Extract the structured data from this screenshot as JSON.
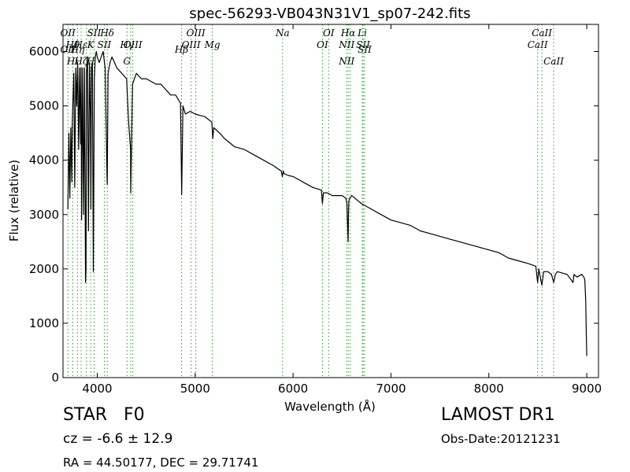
{
  "chart_data": {
    "type": "line",
    "title": "spec-56293-VB043N31V1_sp07-242.fits",
    "xlabel": "Wavelength (Å)",
    "ylabel": "Flux (relative)",
    "xlim": [
      3650,
      9120
    ],
    "ylim": [
      0,
      6500
    ],
    "xticks": [
      4000,
      5000,
      6000,
      7000,
      8000,
      9000
    ],
    "yticks": [
      0,
      1000,
      2000,
      3000,
      4000,
      5000,
      6000
    ],
    "grid": false,
    "series": [
      {
        "color": "#000000",
        "x": [
          3700,
          3710,
          3720,
          3730,
          3740,
          3745,
          3750,
          3760,
          3770,
          3780,
          3790,
          3800,
          3810,
          3820,
          3830,
          3835,
          3840,
          3850,
          3860,
          3870,
          3880,
          3885,
          3890,
          3900,
          3910,
          3920,
          3930,
          3935,
          3940,
          3950,
          3960,
          3965,
          3970,
          3980,
          3990,
          4000,
          4020,
          4040,
          4060,
          4080,
          4100,
          4102,
          4110,
          4130,
          4150,
          4200,
          4250,
          4300,
          4320,
          4340,
          4342,
          4360,
          4380,
          4400,
          4450,
          4500,
          4550,
          4600,
          4650,
          4700,
          4750,
          4800,
          4850,
          4862,
          4875,
          4900,
          4950,
          5000,
          5100,
          5170,
          5180,
          5190,
          5250,
          5300,
          5400,
          5500,
          5600,
          5700,
          5800,
          5880,
          5890,
          5900,
          5910,
          5950,
          6000,
          6100,
          6200,
          6290,
          6300,
          6310,
          6350,
          6400,
          6450,
          6500,
          6540,
          6550,
          6560,
          6563,
          6566,
          6570,
          6580,
          6600,
          6700,
          6800,
          6900,
          7000,
          7100,
          7200,
          7300,
          7400,
          7500,
          7600,
          7700,
          7800,
          7900,
          8000,
          8100,
          8200,
          8300,
          8400,
          8480,
          8498,
          8510,
          8530,
          8542,
          8560,
          8600,
          8640,
          8662,
          8680,
          8700,
          8800,
          8860,
          8870,
          8900,
          8950,
          8970,
          8980,
          8990,
          8995,
          9000
        ],
        "values": [
          3100,
          4500,
          3300,
          4600,
          3600,
          4700,
          5000,
          5600,
          3500,
          5700,
          5000,
          5800,
          4200,
          5700,
          4300,
          5700,
          2900,
          5700,
          3000,
          5700,
          1750,
          2000,
          5600,
          5900,
          2700,
          5800,
          4800,
          3100,
          5700,
          5800,
          1950,
          3900,
          5500,
          5900,
          6000,
          5900,
          5800,
          5900,
          6000,
          5700,
          3700,
          3550,
          5600,
          5800,
          5900,
          5700,
          5600,
          5500,
          4700,
          4200,
          3400,
          5400,
          5500,
          5600,
          5500,
          5500,
          5450,
          5400,
          5400,
          5300,
          5200,
          5200,
          5050,
          3370,
          5000,
          4850,
          4900,
          4850,
          4800,
          4700,
          4400,
          4600,
          4500,
          4400,
          4250,
          4200,
          4100,
          4000,
          3900,
          3800,
          3700,
          3800,
          3750,
          3720,
          3700,
          3600,
          3500,
          3450,
          3200,
          3400,
          3400,
          3350,
          3350,
          3350,
          3300,
          3200,
          2600,
          2500,
          3000,
          3250,
          3300,
          3350,
          3200,
          3100,
          3000,
          2900,
          2850,
          2800,
          2700,
          2650,
          2600,
          2550,
          2500,
          2450,
          2400,
          2350,
          2300,
          2200,
          2150,
          2100,
          2050,
          1750,
          2000,
          1800,
          1700,
          1950,
          1950,
          1900,
          1750,
          1900,
          1950,
          1900,
          1750,
          1900,
          1850,
          1900,
          1850,
          1800,
          1400,
          800,
          400
        ]
      }
    ],
    "line_markers": [
      {
        "x": 3700,
        "top": "OII",
        "bottom": "OII"
      },
      {
        "x": 3750,
        "top": "Hθ",
        "bottom": "Hι"
      },
      {
        "x": 3798,
        "top": "",
        "bottom": "Hη"
      },
      {
        "x": 3835,
        "top": "Hε",
        "bottom": "Hζ"
      },
      {
        "x": 3889,
        "top": "",
        "bottom": ""
      },
      {
        "x": 3933,
        "top": "K",
        "bottom": "H"
      },
      {
        "x": 3968,
        "top": "SII",
        "bottom": ""
      },
      {
        "x": 4072,
        "top": "SII",
        "bottom": ""
      },
      {
        "x": 4102,
        "top": "Hδ",
        "bottom": ""
      },
      {
        "x": 4304,
        "top": "Hγ",
        "bottom": "G"
      },
      {
        "x": 4341,
        "top": "",
        "bottom": ""
      },
      {
        "x": 4363,
        "top": "OIII",
        "bottom": ""
      },
      {
        "x": 4861,
        "top": "",
        "bottom": "Hβ"
      },
      {
        "x": 4959,
        "top": "OIII",
        "bottom": ""
      },
      {
        "x": 5007,
        "top": "OIII",
        "bottom": ""
      },
      {
        "x": 5175,
        "top": "Mg",
        "bottom": ""
      },
      {
        "x": 5893,
        "top": "Na",
        "bottom": ""
      },
      {
        "x": 6300,
        "top": "OI",
        "bottom": ""
      },
      {
        "x": 6364,
        "top": "OI",
        "bottom": ""
      },
      {
        "x": 6548,
        "top": "NII",
        "bottom": "NII"
      },
      {
        "x": 6563,
        "top": "Hα",
        "bottom": ""
      },
      {
        "x": 6583,
        "top": "",
        "bottom": ""
      },
      {
        "x": 6707,
        "top": "Li",
        "bottom": ""
      },
      {
        "x": 6716,
        "top": "SII",
        "bottom": ""
      },
      {
        "x": 6731,
        "top": "",
        "bottom": "SII"
      },
      {
        "x": 8498,
        "top": "CaII",
        "bottom": ""
      },
      {
        "x": 8542,
        "top": "CaII",
        "bottom": ""
      },
      {
        "x": 8662,
        "top": "",
        "bottom": "CaII"
      }
    ],
    "line_marker_color": "#2ca02c"
  },
  "info": {
    "object_class": "STAR",
    "subclass": "F0",
    "redshift_text": "cz = -6.6  ± 12.9",
    "coords_text": "RA = 44.50177, DEC = 29.71741",
    "survey": "LAMOST DR1",
    "obs_date": "Obs-Date:20121231"
  }
}
